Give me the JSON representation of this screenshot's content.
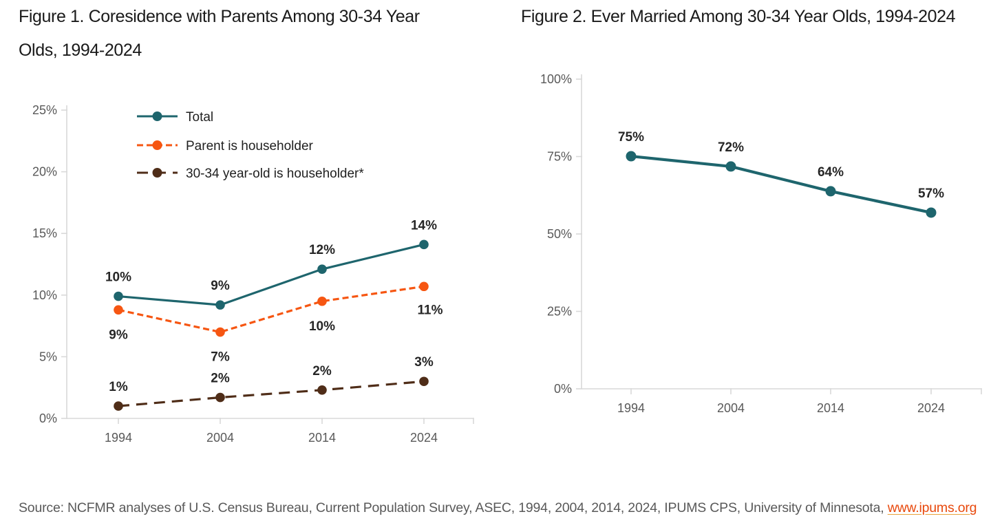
{
  "figures": [
    {
      "title_lines": [
        "Figure 1. Coresidence with Parents Among 30-34 Year",
        "Olds, 1994-2024"
      ]
    },
    {
      "title_lines": [
        "Figure 2. Ever Married Among 30-34 Year Olds, 1994-2024"
      ]
    }
  ],
  "source": {
    "prefix": "Source: NCFMR analyses of U.S. Census Bureau, Current Population Survey, ASEC, 1994, 2004, 2014, 2024, IPUMS CPS, University of Minnesota, ",
    "link_text": "www.ipums.org"
  },
  "colors": {
    "teal": "#1E656D",
    "orange": "#F65612",
    "brown": "#4F2D18",
    "axis_line": "#D9D9D9",
    "tick_label": "#595959",
    "data_label": "#262626",
    "legend_label": "#1F1F1F",
    "title_text": "#1A1A1A",
    "source_text": "#595959",
    "link_text_color": "#E8490D",
    "link_underline": "#E9A23B"
  },
  "chart_data": [
    {
      "type": "line",
      "title": "Figure 1. Coresidence with Parents Among 30-34 Year Olds, 1994-2024",
      "categories": [
        "1994",
        "2004",
        "2014",
        "2024"
      ],
      "series": [
        {
          "name": "Total",
          "values": [
            9.9,
            9.2,
            12.1,
            14.1
          ],
          "point_labels": [
            "10%",
            "9%",
            "12%",
            "14%"
          ],
          "label_pos": [
            "above",
            "above",
            "above",
            "above"
          ],
          "color": "#1E656D",
          "line_style": "solid"
        },
        {
          "name": "Parent is householder",
          "values": [
            8.8,
            7.0,
            9.5,
            10.7
          ],
          "point_labels": [
            "9%",
            "7%",
            "10%",
            "11%"
          ],
          "label_pos": [
            "below",
            "below",
            "below",
            "below-right"
          ],
          "color": "#F65612",
          "line_style": "dashed"
        },
        {
          "name": "30-34 year-old is householder*",
          "values": [
            1.0,
            1.7,
            2.3,
            3.0
          ],
          "point_labels": [
            "1%",
            "2%",
            "2%",
            "3%"
          ],
          "label_pos": [
            "above",
            "above",
            "above",
            "above"
          ],
          "color": "#4F2D18",
          "line_style": "long-dash"
        }
      ],
      "xlabel": "",
      "ylabel": "",
      "ylim": [
        0,
        25
      ],
      "yticks": [
        "0%",
        "5%",
        "10%",
        "15%",
        "20%",
        "25%"
      ],
      "legend_position": "inside-top-left",
      "grid": false
    },
    {
      "type": "line",
      "title": "Figure 2. Ever Married Among 30-34 Year Olds, 1994-2024",
      "categories": [
        "1994",
        "2004",
        "2014",
        "2024"
      ],
      "series": [
        {
          "name": "Ever married",
          "values": [
            75.1,
            71.8,
            63.8,
            56.9
          ],
          "point_labels": [
            "75%",
            "72%",
            "64%",
            "57%"
          ],
          "label_pos": [
            "above",
            "above",
            "above",
            "above"
          ],
          "color": "#1E656D",
          "line_style": "solid"
        }
      ],
      "xlabel": "",
      "ylabel": "",
      "ylim": [
        0,
        100
      ],
      "yticks": [
        "0%",
        "25%",
        "50%",
        "75%",
        "100%"
      ],
      "legend_position": "none",
      "grid": false
    }
  ]
}
